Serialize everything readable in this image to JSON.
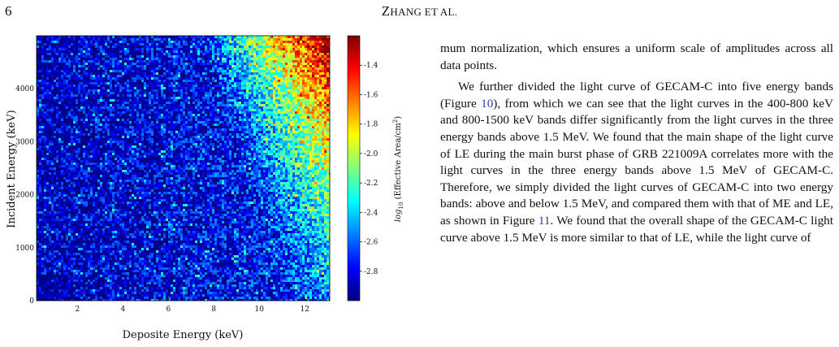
{
  "header": {
    "page_number": "6",
    "running_head_first": "Z",
    "running_head_rest": "HANG ET AL."
  },
  "figure": {
    "xlabel": "Deposite Energy (keV)",
    "ylabel": "Incident Energy (keV)",
    "x_ticks": [
      "2",
      "4",
      "6",
      "8",
      "10",
      "12"
    ],
    "y_ticks": [
      "0",
      "1000",
      "2000",
      "3000",
      "4000"
    ],
    "colorbar_label": "log10 (Effective Area/cm2)",
    "colorbar_label_parts": {
      "log": "log",
      "sub": "10",
      "mid": " (Effective Area/cm",
      "sup": "2",
      "end": ")"
    },
    "colorbar_ticks": [
      "-1.4",
      "-1.6",
      "-1.8",
      "-2.0",
      "-2.2",
      "-2.4",
      "-2.6",
      "-2.8"
    ]
  },
  "chart_data": {
    "type": "heatmap",
    "xlabel": "Deposite Energy (keV)",
    "ylabel": "Incident Energy (keV)",
    "xlim": [
      0.2,
      13.1
    ],
    "ylim": [
      0,
      5000
    ],
    "x_ticks": [
      2,
      4,
      6,
      8,
      10,
      12
    ],
    "y_ticks": [
      0,
      1000,
      2000,
      3000,
      4000
    ],
    "colorbar": {
      "label": "log10 (Effective Area/cm2)",
      "range": [
        -3.0,
        -1.2
      ],
      "ticks": [
        -1.4,
        -1.6,
        -1.8,
        -2.0,
        -2.2,
        -2.4,
        -2.6,
        -2.8
      ],
      "colormap": "jet"
    }
  },
  "body_text": {
    "p1": "mum normalization, which ensures a uniform scale of amplitudes across all data points.",
    "p2_a": "We further divided the light curve of GECAM-C into five energy bands (Figure ",
    "p2_ref1": "10",
    "p2_b": "), from which we can see that the light curves in the 400-800 keV and 800-1500 keV bands differ significantly from the light curves in the three energy bands above 1.5 MeV. We found that the main shape of the light curve of LE during the main burst phase of GRB 221009A correlates more with the light curves in the three energy bands above 1.5 MeV of GECAM-C. Therefore, we simply divided the light curves of GECAM-C into two energy bands: above and below 1.5 MeV, and compared them with that of ME and LE, as shown in Figure ",
    "p2_ref2": "11",
    "p2_c": ". We found that the overall shape of the GECAM-C light curve above 1.5 MeV is more similar to that of LE, while the light curve of"
  }
}
